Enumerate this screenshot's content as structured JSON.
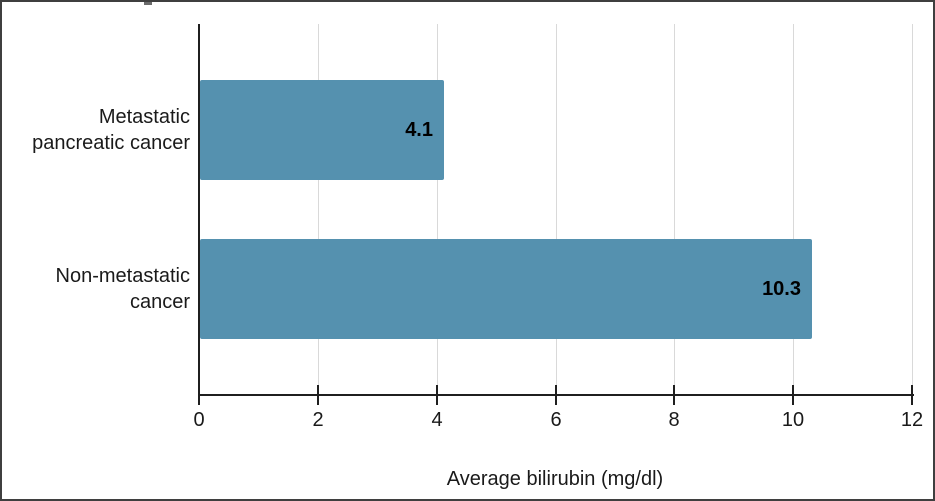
{
  "chart_data": {
    "type": "bar",
    "orientation": "horizontal",
    "title": "",
    "categories": [
      "Metastatic pancreatic cancer",
      "Non-metastatic cancer"
    ],
    "category_lines": [
      [
        "Metastatic",
        "pancreatic cancer"
      ],
      [
        "Non-metastatic",
        "cancer"
      ]
    ],
    "values": [
      4.1,
      10.3
    ],
    "data_labels": [
      "4.1",
      "10.3"
    ],
    "xlabel": "Average bilirubin (mg/dl)",
    "ylabel": "",
    "xlim": [
      0,
      12
    ],
    "xticks": [
      "0",
      "2",
      "4",
      "6",
      "8",
      "10",
      "12"
    ],
    "xtick_values": [
      0,
      2,
      4,
      6,
      8,
      10,
      12
    ],
    "grid": "vertical gridlines on",
    "legend": "none",
    "colors": {
      "bar": "#5591af",
      "gridline": "#d9d9d9",
      "axis": "#1f1f1f",
      "text": "#1a1a1a",
      "frame_border": "#3f3f3f",
      "background": "#ffffff"
    }
  }
}
